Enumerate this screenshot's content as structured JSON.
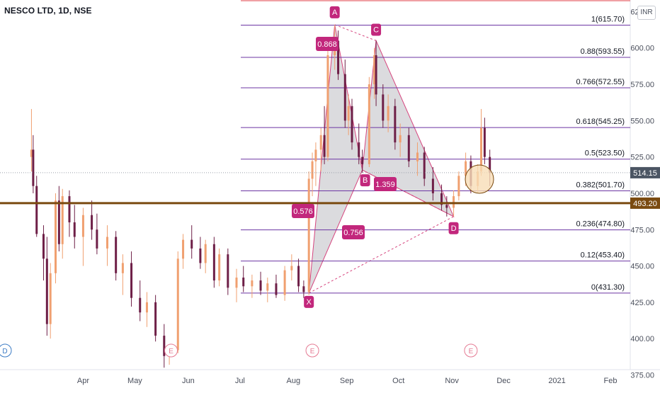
{
  "header": {
    "symbol": "NESCO LTD, 1D, NSE",
    "currency": "INR"
  },
  "colors": {
    "up": "#f0a070",
    "down": "#6e1f47",
    "fib": "#6c35a3",
    "pattern_fill": "#c8c8cc",
    "pattern_edge": "#d6457e",
    "label_bg": "#c2277c",
    "support_line": "#7a4a10",
    "earnings": "#e57a93",
    "dividend": "#3b7bc4",
    "price_tag": "#4b5563",
    "circle": "#f7ddb7"
  },
  "chart_data": {
    "type": "candlestick",
    "title": "NESCO LTD, 1D, NSE",
    "y_axis": {
      "min": 365,
      "max": 633,
      "ticks": [
        "625.00",
        "600.00",
        "575.00",
        "550.00",
        "525.00",
        "500.00",
        "475.00",
        "450.00",
        "425.00",
        "400.00",
        "375.00"
      ]
    },
    "x_axis": {
      "ticks": [
        "Apr",
        "May",
        "Jun",
        "Jul",
        "Aug",
        "Sep",
        "Oct",
        "Nov",
        "Dec",
        "2021",
        "Feb"
      ]
    },
    "price_close": "514.15",
    "support_level": "493.20",
    "fib_levels": [
      {
        "label": "1(615.70)",
        "value": 615.7
      },
      {
        "label": "0.88(593.55)",
        "value": 593.55
      },
      {
        "label": "0.766(572.55)",
        "value": 572.55
      },
      {
        "label": "0.618(545.25)",
        "value": 545.25
      },
      {
        "label": "0.5(523.50)",
        "value": 523.5
      },
      {
        "label": "0.382(501.70)",
        "value": 501.7
      },
      {
        "label": "0.236(474.80)",
        "value": 474.8
      },
      {
        "label": "0.12(453.40)",
        "value": 453.4
      },
      {
        "label": "0(431.30)",
        "value": 431.3
      }
    ],
    "harmonic_points": [
      {
        "name": "X",
        "date": "2020-08-10",
        "price": 431.3
      },
      {
        "name": "A",
        "date": "2020-08-25",
        "price": 616
      },
      {
        "name": "B",
        "date": "2020-09-10",
        "price": 516
      },
      {
        "name": "C",
        "date": "2020-09-18",
        "price": 605
      },
      {
        "name": "D",
        "date": "2020-11-02",
        "price": 484
      }
    ],
    "ratios": [
      {
        "label": "0.868"
      },
      {
        "label": "0.576"
      },
      {
        "label": "1.359"
      },
      {
        "label": "0.756"
      }
    ],
    "events": [
      {
        "type": "dividend",
        "label": "D",
        "date": "2020-03-05"
      },
      {
        "type": "earnings",
        "label": "E",
        "date": "2020-05-22"
      },
      {
        "type": "earnings",
        "label": "E",
        "date": "2020-08-12"
      },
      {
        "type": "earnings",
        "label": "E",
        "date": "2020-11-12"
      }
    ],
    "candles": [
      {
        "d": "2020-03-02",
        "o": 525,
        "h": 558,
        "l": 515,
        "c": 530
      },
      {
        "d": "2020-03-03",
        "o": 530,
        "h": 540,
        "l": 500,
        "c": 505
      },
      {
        "d": "2020-03-05",
        "o": 505,
        "h": 512,
        "l": 470,
        "c": 472
      },
      {
        "d": "2020-03-09",
        "o": 472,
        "h": 478,
        "l": 440,
        "c": 455
      },
      {
        "d": "2020-03-11",
        "o": 455,
        "h": 470,
        "l": 402,
        "c": 410
      },
      {
        "d": "2020-03-13",
        "o": 410,
        "h": 452,
        "l": 400,
        "c": 445
      },
      {
        "d": "2020-03-16",
        "o": 445,
        "h": 500,
        "l": 438,
        "c": 495
      },
      {
        "d": "2020-03-18",
        "o": 495,
        "h": 505,
        "l": 460,
        "c": 465
      },
      {
        "d": "2020-03-20",
        "o": 465,
        "h": 503,
        "l": 455,
        "c": 498
      },
      {
        "d": "2020-03-24",
        "o": 498,
        "h": 502,
        "l": 470,
        "c": 480
      },
      {
        "d": "2020-03-27",
        "o": 480,
        "h": 492,
        "l": 462,
        "c": 470
      },
      {
        "d": "2020-04-01",
        "o": 470,
        "h": 490,
        "l": 450,
        "c": 485
      },
      {
        "d": "2020-04-06",
        "o": 485,
        "h": 495,
        "l": 468,
        "c": 475
      },
      {
        "d": "2020-04-09",
        "o": 475,
        "h": 486,
        "l": 458,
        "c": 462
      },
      {
        "d": "2020-04-15",
        "o": 462,
        "h": 478,
        "l": 450,
        "c": 470
      },
      {
        "d": "2020-04-20",
        "o": 470,
        "h": 474,
        "l": 440,
        "c": 445
      },
      {
        "d": "2020-04-24",
        "o": 445,
        "h": 458,
        "l": 430,
        "c": 452
      },
      {
        "d": "2020-04-29",
        "o": 452,
        "h": 460,
        "l": 422,
        "c": 428
      },
      {
        "d": "2020-05-04",
        "o": 428,
        "h": 440,
        "l": 412,
        "c": 418
      },
      {
        "d": "2020-05-08",
        "o": 418,
        "h": 432,
        "l": 408,
        "c": 425
      },
      {
        "d": "2020-05-13",
        "o": 425,
        "h": 430,
        "l": 398,
        "c": 402
      },
      {
        "d": "2020-05-18",
        "o": 402,
        "h": 410,
        "l": 380,
        "c": 388
      },
      {
        "d": "2020-05-21",
        "o": 388,
        "h": 396,
        "l": 382,
        "c": 392
      },
      {
        "d": "2020-05-26",
        "o": 392,
        "h": 460,
        "l": 390,
        "c": 455
      },
      {
        "d": "2020-05-29",
        "o": 455,
        "h": 472,
        "l": 448,
        "c": 468
      },
      {
        "d": "2020-06-03",
        "o": 468,
        "h": 478,
        "l": 455,
        "c": 462
      },
      {
        "d": "2020-06-08",
        "o": 462,
        "h": 470,
        "l": 448,
        "c": 452
      },
      {
        "d": "2020-06-11",
        "o": 452,
        "h": 468,
        "l": 445,
        "c": 465
      },
      {
        "d": "2020-06-16",
        "o": 465,
        "h": 470,
        "l": 435,
        "c": 440
      },
      {
        "d": "2020-06-19",
        "o": 440,
        "h": 462,
        "l": 436,
        "c": 458
      },
      {
        "d": "2020-06-24",
        "o": 458,
        "h": 462,
        "l": 430,
        "c": 435
      },
      {
        "d": "2020-06-29",
        "o": 435,
        "h": 448,
        "l": 425,
        "c": 442
      },
      {
        "d": "2020-07-03",
        "o": 442,
        "h": 450,
        "l": 432,
        "c": 436
      },
      {
        "d": "2020-07-08",
        "o": 436,
        "h": 444,
        "l": 428,
        "c": 440
      },
      {
        "d": "2020-07-13",
        "o": 440,
        "h": 446,
        "l": 430,
        "c": 433
      },
      {
        "d": "2020-07-17",
        "o": 433,
        "h": 442,
        "l": 425,
        "c": 438
      },
      {
        "d": "2020-07-22",
        "o": 438,
        "h": 444,
        "l": 428,
        "c": 430
      },
      {
        "d": "2020-07-27",
        "o": 430,
        "h": 450,
        "l": 426,
        "c": 447
      },
      {
        "d": "2020-07-31",
        "o": 447,
        "h": 458,
        "l": 440,
        "c": 450
      },
      {
        "d": "2020-08-04",
        "o": 450,
        "h": 455,
        "l": 432,
        "c": 436
      },
      {
        "d": "2020-08-07",
        "o": 436,
        "h": 440,
        "l": 428,
        "c": 432
      },
      {
        "d": "2020-08-10",
        "o": 432,
        "h": 515,
        "l": 430,
        "c": 510
      },
      {
        "d": "2020-08-12",
        "o": 510,
        "h": 528,
        "l": 498,
        "c": 522
      },
      {
        "d": "2020-08-14",
        "o": 522,
        "h": 535,
        "l": 505,
        "c": 530
      },
      {
        "d": "2020-08-17",
        "o": 530,
        "h": 545,
        "l": 515,
        "c": 540
      },
      {
        "d": "2020-08-19",
        "o": 540,
        "h": 560,
        "l": 520,
        "c": 525
      },
      {
        "d": "2020-08-21",
        "o": 525,
        "h": 600,
        "l": 522,
        "c": 595
      },
      {
        "d": "2020-08-25",
        "o": 595,
        "h": 616,
        "l": 585,
        "c": 605
      },
      {
        "d": "2020-08-27",
        "o": 605,
        "h": 612,
        "l": 578,
        "c": 582
      },
      {
        "d": "2020-08-31",
        "o": 582,
        "h": 592,
        "l": 545,
        "c": 550
      },
      {
        "d": "2020-09-02",
        "o": 550,
        "h": 568,
        "l": 540,
        "c": 560
      },
      {
        "d": "2020-09-04",
        "o": 560,
        "h": 565,
        "l": 530,
        "c": 535
      },
      {
        "d": "2020-09-08",
        "o": 535,
        "h": 548,
        "l": 520,
        "c": 525
      },
      {
        "d": "2020-09-10",
        "o": 525,
        "h": 530,
        "l": 514,
        "c": 520
      },
      {
        "d": "2020-09-14",
        "o": 520,
        "h": 580,
        "l": 518,
        "c": 575
      },
      {
        "d": "2020-09-17",
        "o": 575,
        "h": 600,
        "l": 565,
        "c": 595
      },
      {
        "d": "2020-09-18",
        "o": 595,
        "h": 605,
        "l": 560,
        "c": 568
      },
      {
        "d": "2020-09-22",
        "o": 568,
        "h": 575,
        "l": 545,
        "c": 550
      },
      {
        "d": "2020-09-25",
        "o": 550,
        "h": 568,
        "l": 542,
        "c": 560
      },
      {
        "d": "2020-09-29",
        "o": 560,
        "h": 565,
        "l": 530,
        "c": 535
      },
      {
        "d": "2020-10-02",
        "o": 535,
        "h": 548,
        "l": 525,
        "c": 540
      },
      {
        "d": "2020-10-07",
        "o": 540,
        "h": 545,
        "l": 518,
        "c": 522
      },
      {
        "d": "2020-10-12",
        "o": 522,
        "h": 535,
        "l": 512,
        "c": 528
      },
      {
        "d": "2020-10-16",
        "o": 528,
        "h": 532,
        "l": 505,
        "c": 510
      },
      {
        "d": "2020-10-21",
        "o": 510,
        "h": 518,
        "l": 495,
        "c": 500
      },
      {
        "d": "2020-10-26",
        "o": 500,
        "h": 506,
        "l": 488,
        "c": 492
      },
      {
        "d": "2020-10-29",
        "o": 492,
        "h": 498,
        "l": 484,
        "c": 490
      },
      {
        "d": "2020-11-02",
        "o": 490,
        "h": 502,
        "l": 484,
        "c": 498
      },
      {
        "d": "2020-11-05",
        "o": 498,
        "h": 515,
        "l": 495,
        "c": 512
      },
      {
        "d": "2020-11-09",
        "o": 512,
        "h": 528,
        "l": 505,
        "c": 522
      },
      {
        "d": "2020-11-12",
        "o": 522,
        "h": 526,
        "l": 500,
        "c": 505
      },
      {
        "d": "2020-11-16",
        "o": 505,
        "h": 520,
        "l": 500,
        "c": 515
      },
      {
        "d": "2020-11-18",
        "o": 515,
        "h": 558,
        "l": 512,
        "c": 545
      },
      {
        "d": "2020-11-20",
        "o": 545,
        "h": 552,
        "l": 520,
        "c": 525
      },
      {
        "d": "2020-11-23",
        "o": 525,
        "h": 530,
        "l": 505,
        "c": 514
      }
    ]
  }
}
